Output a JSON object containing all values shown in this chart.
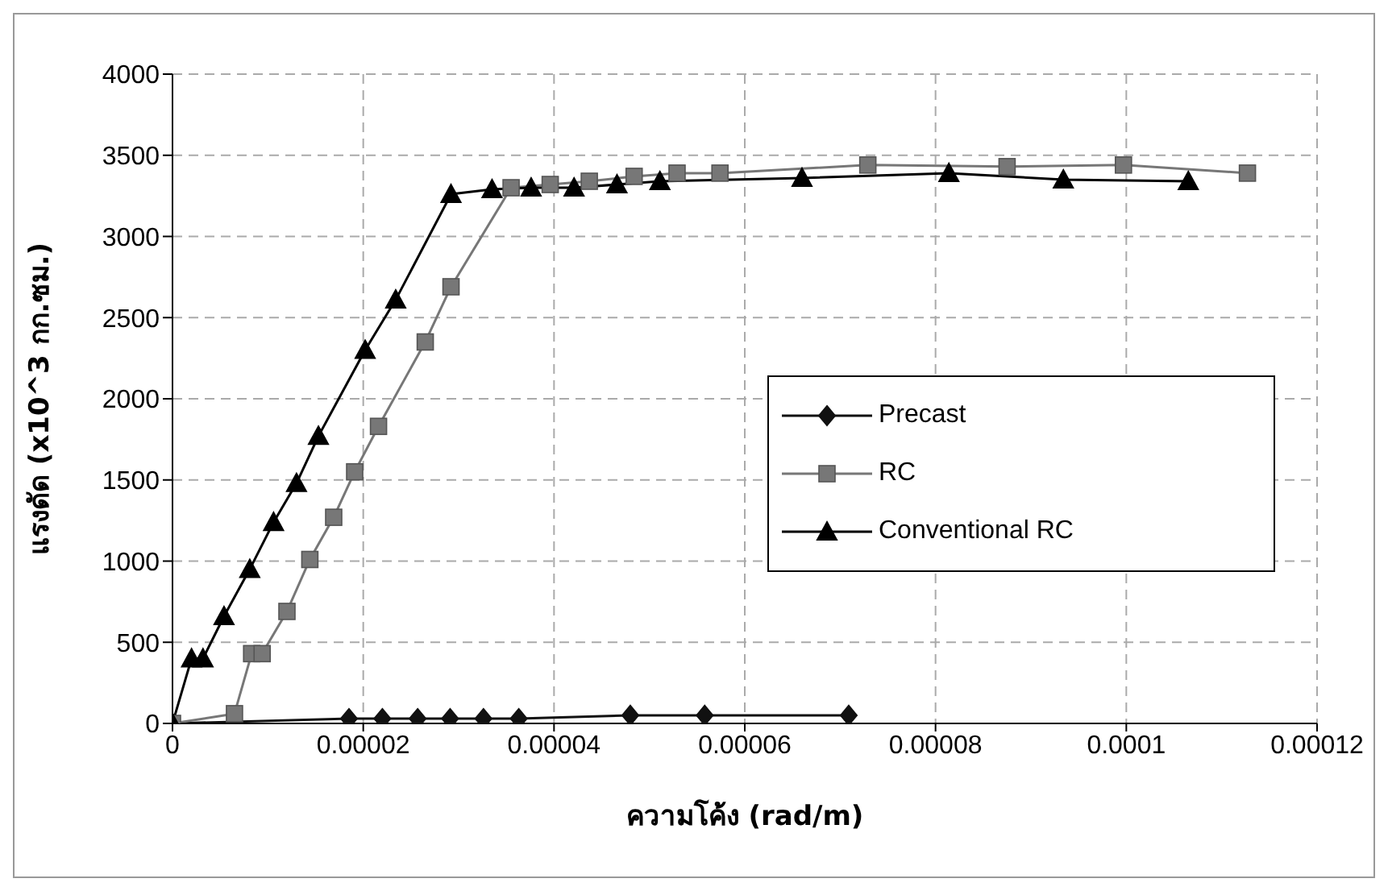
{
  "chart_data": {
    "type": "line",
    "xlabel": "ความโค้ง (rad/m)",
    "ylabel": "แรงดัด (x10^3 กก.ซม.)",
    "xlim": [
      0,
      0.00012
    ],
    "xticks": [
      0,
      {
        "value": 2e-05,
        "label": "0.00002"
      },
      {
        "value": 4e-05,
        "label": "0.00004"
      },
      {
        "value": 6e-05,
        "label": "0.00006"
      },
      {
        "value": 8e-05,
        "label": "0.00008"
      },
      0.0001,
      0.00012
    ],
    "ylim": [
      0,
      4000
    ],
    "yticks": [
      0,
      500,
      1000,
      1500,
      2000,
      2500,
      3000,
      3500,
      4000
    ],
    "grid": true,
    "legend": "right",
    "line_style": "solid",
    "series": [
      {
        "name": "Precast",
        "color": "#111111",
        "marker": "diamond",
        "x": [
          0,
          1.85e-05,
          2.2e-05,
          2.57e-05,
          2.91e-05,
          3.26e-05,
          3.63e-05,
          4.8e-05,
          5.58e-05,
          7.09e-05
        ],
        "values": [
          0,
          30,
          30,
          30,
          30,
          30,
          30,
          50,
          50,
          50
        ]
      },
      {
        "name": "RC",
        "color": "#777777",
        "marker": "square",
        "x": [
          0,
          6.5e-06,
          8.3e-06,
          9.4e-06,
          1.2e-05,
          1.44e-05,
          1.69e-05,
          1.91e-05,
          2.16e-05,
          2.65e-05,
          2.92e-05,
          3.55e-05,
          3.96e-05,
          4.37e-05,
          4.84e-05,
          5.29e-05,
          5.74e-05,
          7.29e-05,
          8.75e-05,
          9.97e-05,
          0.0001127
        ],
        "values": [
          0,
          60,
          430,
          430,
          690,
          1010,
          1270,
          1550,
          1830,
          2350,
          2690,
          3300,
          3320,
          3340,
          3370,
          3390,
          3390,
          3440,
          3430,
          3440,
          3390
        ]
      },
      {
        "name": "Conventional RC",
        "color": "#000000",
        "marker": "triangle",
        "x": [
          0,
          2e-06,
          3.2e-06,
          5.4e-06,
          8.1e-06,
          1.06e-05,
          1.3e-05,
          1.53e-05,
          2.02e-05,
          2.34e-05,
          2.92e-05,
          3.35e-05,
          3.76e-05,
          4.21e-05,
          4.66e-05,
          5.11e-05,
          6.6e-05,
          8.14e-05,
          9.34e-05,
          0.0001065
        ],
        "values": [
          0,
          400,
          400,
          660,
          950,
          1240,
          1480,
          1770,
          2300,
          2610,
          3260,
          3290,
          3300,
          3300,
          3320,
          3340,
          3360,
          3390,
          3350,
          3340
        ]
      }
    ]
  }
}
